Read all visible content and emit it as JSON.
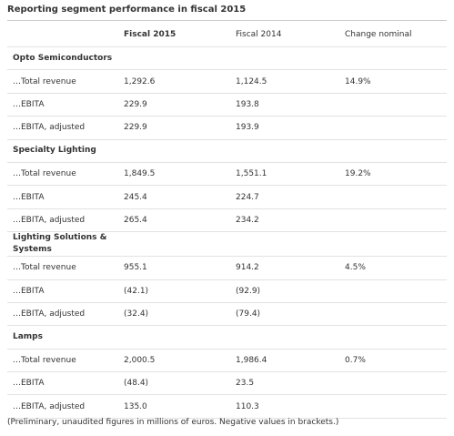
{
  "title": "Reporting segment performance in fiscal 2015",
  "table": {
    "header": [
      "Fiscal 2015",
      "Fiscal 2014",
      "Change nominal"
    ],
    "sections": [
      {
        "name": "Opto Semiconductors",
        "rows": [
          [
            "…Total revenue",
            "1,292.6",
            "1,124.5",
            "14.9%"
          ],
          [
            "…EBITA",
            "229.9",
            "193.8"
          ],
          [
            "…EBITA, adjusted",
            "229.9",
            "193.9"
          ]
        ]
      },
      {
        "name": "Specialty Lighting",
        "rows": [
          [
            "…Total revenue",
            "1,849.5",
            "1,551.1",
            "19.2%"
          ],
          [
            "…EBITA",
            "245.4",
            "224.7"
          ],
          [
            "…EBITA, adjusted",
            "265.4",
            "234.2"
          ]
        ]
      },
      {
        "name": "Lighting Solutions & Systems",
        "rows": [
          [
            "…Total revenue",
            "955.1",
            "914.2",
            "4.5%"
          ],
          [
            "…EBITA",
            "(42.1)",
            "(92.9)"
          ],
          [
            "…EBITA, adjusted",
            "(32.4)",
            "(79.4)"
          ]
        ]
      },
      {
        "name": "Lamps",
        "rows": [
          [
            "…Total revenue",
            "2,000.5",
            "1,986.4",
            "0.7%"
          ],
          [
            "…EBITA",
            "(48.4)",
            "23.5"
          ],
          [
            "…EBITA, adjusted",
            "135.0",
            "110.3"
          ]
        ]
      }
    ]
  },
  "footnote": "(Preliminary, unaudited figures in millions of euros. Negative values in brackets.)"
}
